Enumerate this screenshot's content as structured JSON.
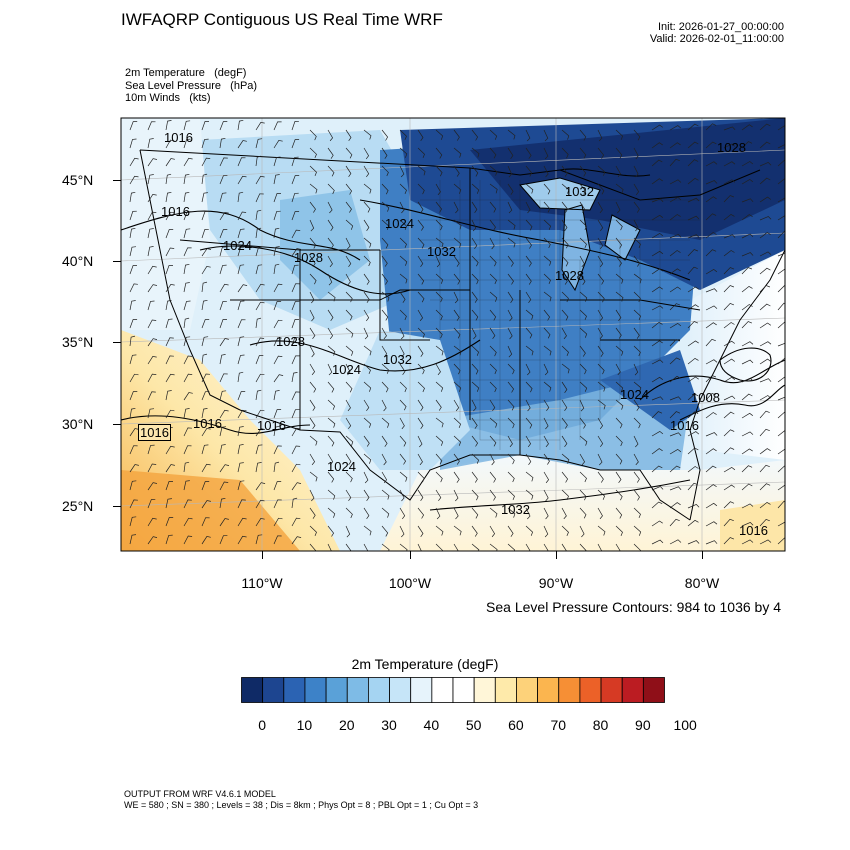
{
  "header": {
    "title": "IWFAQRP Contiguous US Real Time WRF",
    "init": "Init: 2026-01-27_00:00:00",
    "valid": "Valid: 2026-02-01_11:00:00"
  },
  "fields": [
    {
      "name": "2m Temperature",
      "unit": "(degF)"
    },
    {
      "name": "Sea Level Pressure",
      "unit": "(hPa)"
    },
    {
      "name": "10m Winds",
      "unit": "(kts)"
    }
  ],
  "map": {
    "lon_labels": [
      "110°W",
      "100°W",
      "90°W",
      "80°W"
    ],
    "lat_labels": [
      "45°N",
      "40°N",
      "35°N",
      "30°N",
      "25°N"
    ],
    "pressure_labels": [
      "1016",
      "1016",
      "1024",
      "1028",
      "1024",
      "1032",
      "1028",
      "1028",
      "1024",
      "1032",
      "1016",
      "1016",
      "1016",
      "1024",
      "1032",
      "1024",
      "1008",
      "1016",
      "1016",
      "1032",
      "1028"
    ],
    "slp_note": "Sea Level Pressure Contours: 984 to 1036 by 4"
  },
  "colorbar": {
    "title": "2m Temperature  (degF)",
    "tick_labels": [
      "0",
      "10",
      "20",
      "30",
      "40",
      "50",
      "60",
      "70",
      "80",
      "90",
      "100"
    ],
    "colors": [
      "#0f2a66",
      "#1d4590",
      "#2b63b3",
      "#3d82c8",
      "#5aa1d8",
      "#7ebbe6",
      "#a5d4f2",
      "#c6e5f8",
      "#e6f3fb",
      "#ffffff",
      "#ffffff",
      "#fff6d8",
      "#feeaaa",
      "#fdd27a",
      "#fbb54f",
      "#f68f35",
      "#ec6128",
      "#d63a24",
      "#bb1c22",
      "#8f0f18"
    ]
  },
  "footer": {
    "line1": "OUTPUT FROM WRF V4.6.1 MODEL",
    "line2": "WE = 580 ; SN = 380 ; Levels = 38 ; Dis = 8km ; Phys Opt = 8 ; PBL Opt = 1 ; Cu Opt = 3"
  }
}
